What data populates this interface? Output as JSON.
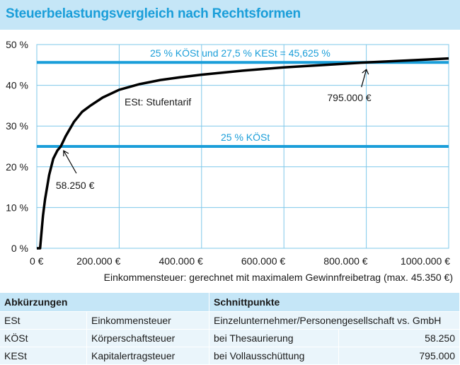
{
  "title": "Steuerbelastungsvergleich nach Rechtsformen",
  "chart_data": {
    "type": "line",
    "xlabel": "Einkommensteuer: gerechnet mit maximalem Gewinnfreibetrag (max. 45.350 €)",
    "xlim": [
      0,
      1000000
    ],
    "ylim": [
      0,
      50
    ],
    "x_ticks": [
      {
        "value": 0,
        "label": "0 €"
      },
      {
        "value": 200000,
        "label": "200.000 €"
      },
      {
        "value": 400000,
        "label": "400.000 €"
      },
      {
        "value": 600000,
        "label": "600.000 €"
      },
      {
        "value": 800000,
        "label": "800.000 €"
      },
      {
        "value": 1000000,
        "label": "1000.000 €"
      }
    ],
    "y_ticks": [
      {
        "value": 0,
        "label": "0 %"
      },
      {
        "value": 10,
        "label": "10 %"
      },
      {
        "value": 20,
        "label": "20 %"
      },
      {
        "value": 30,
        "label": "30 %"
      },
      {
        "value": 40,
        "label": "40 %"
      },
      {
        "value": 50,
        "label": "50 %"
      }
    ],
    "grid": true,
    "series": [
      {
        "name": "ESt: Stufentarif",
        "color": "#000000",
        "x": [
          0,
          8000,
          15000,
          20000,
          30000,
          40000,
          50000,
          58250,
          70000,
          90000,
          110000,
          130000,
          160000,
          200000,
          250000,
          300000,
          350000,
          400000,
          450000,
          500000,
          600000,
          700000,
          795000,
          900000,
          1000000
        ],
        "y": [
          0,
          0,
          8,
          12,
          18,
          22,
          24,
          25,
          27.5,
          31,
          33.5,
          35,
          37,
          38.9,
          40.3,
          41.3,
          42,
          42.6,
          43.1,
          43.6,
          44.4,
          45,
          45.6,
          46.1,
          46.6
        ]
      }
    ],
    "reference_lines": [
      {
        "y": 45.625,
        "label": "25 % KÖSt  und 27,5 % KESt  = 45,625 %",
        "color": "#1a9ed9"
      },
      {
        "y": 25,
        "label": "25 % KÖSt",
        "color": "#1a9ed9"
      }
    ],
    "annotations": [
      {
        "text": "58.250 €",
        "x": 58250,
        "y": 25
      },
      {
        "text": "795.000 €",
        "x": 795000,
        "y": 45.625
      },
      {
        "text": "ESt: Stufentarif",
        "x": 200000,
        "y": 36
      }
    ]
  },
  "table": {
    "headers": [
      "Abkürzungen",
      "Schnittpunkte"
    ],
    "rows": [
      [
        "ESt",
        "Einkommensteuer",
        "Einzelunternehmer/Personengesellschaft vs. GmbH",
        ""
      ],
      [
        "KÖSt",
        "Körperschaftsteuer",
        "bei Thesaurierung",
        "58.250"
      ],
      [
        "KESt",
        "Kapitalertragsteuer",
        "bei Vollausschüttung",
        "795.000"
      ]
    ]
  }
}
